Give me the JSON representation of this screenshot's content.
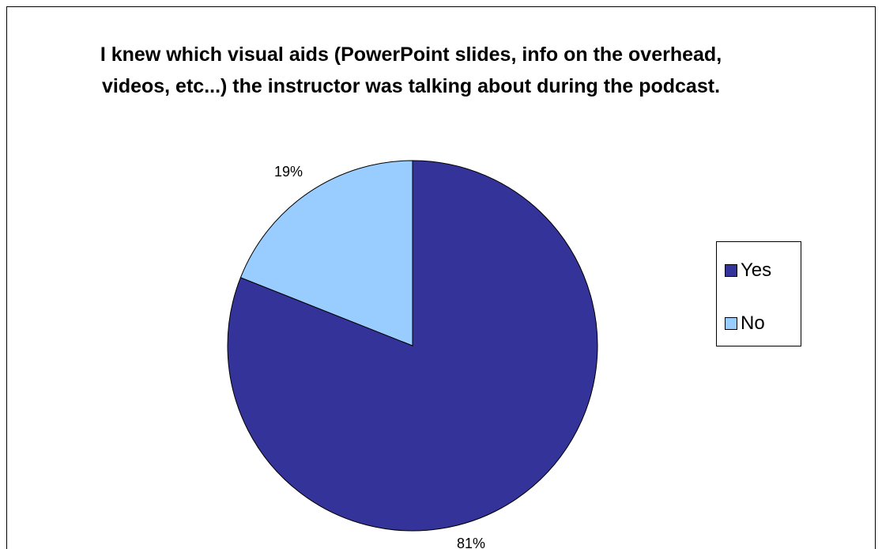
{
  "chart_data": {
    "type": "pie",
    "title": "I knew which visual aids (PowerPoint slides, info on the overhead, videos, etc...) the instructor was talking about during the podcast.",
    "categories": [
      "Yes",
      "No"
    ],
    "values": [
      81,
      19
    ],
    "data_labels": [
      "81%",
      "19%"
    ],
    "colors": [
      "#333399",
      "#99ccff"
    ],
    "legend_position": "right"
  }
}
